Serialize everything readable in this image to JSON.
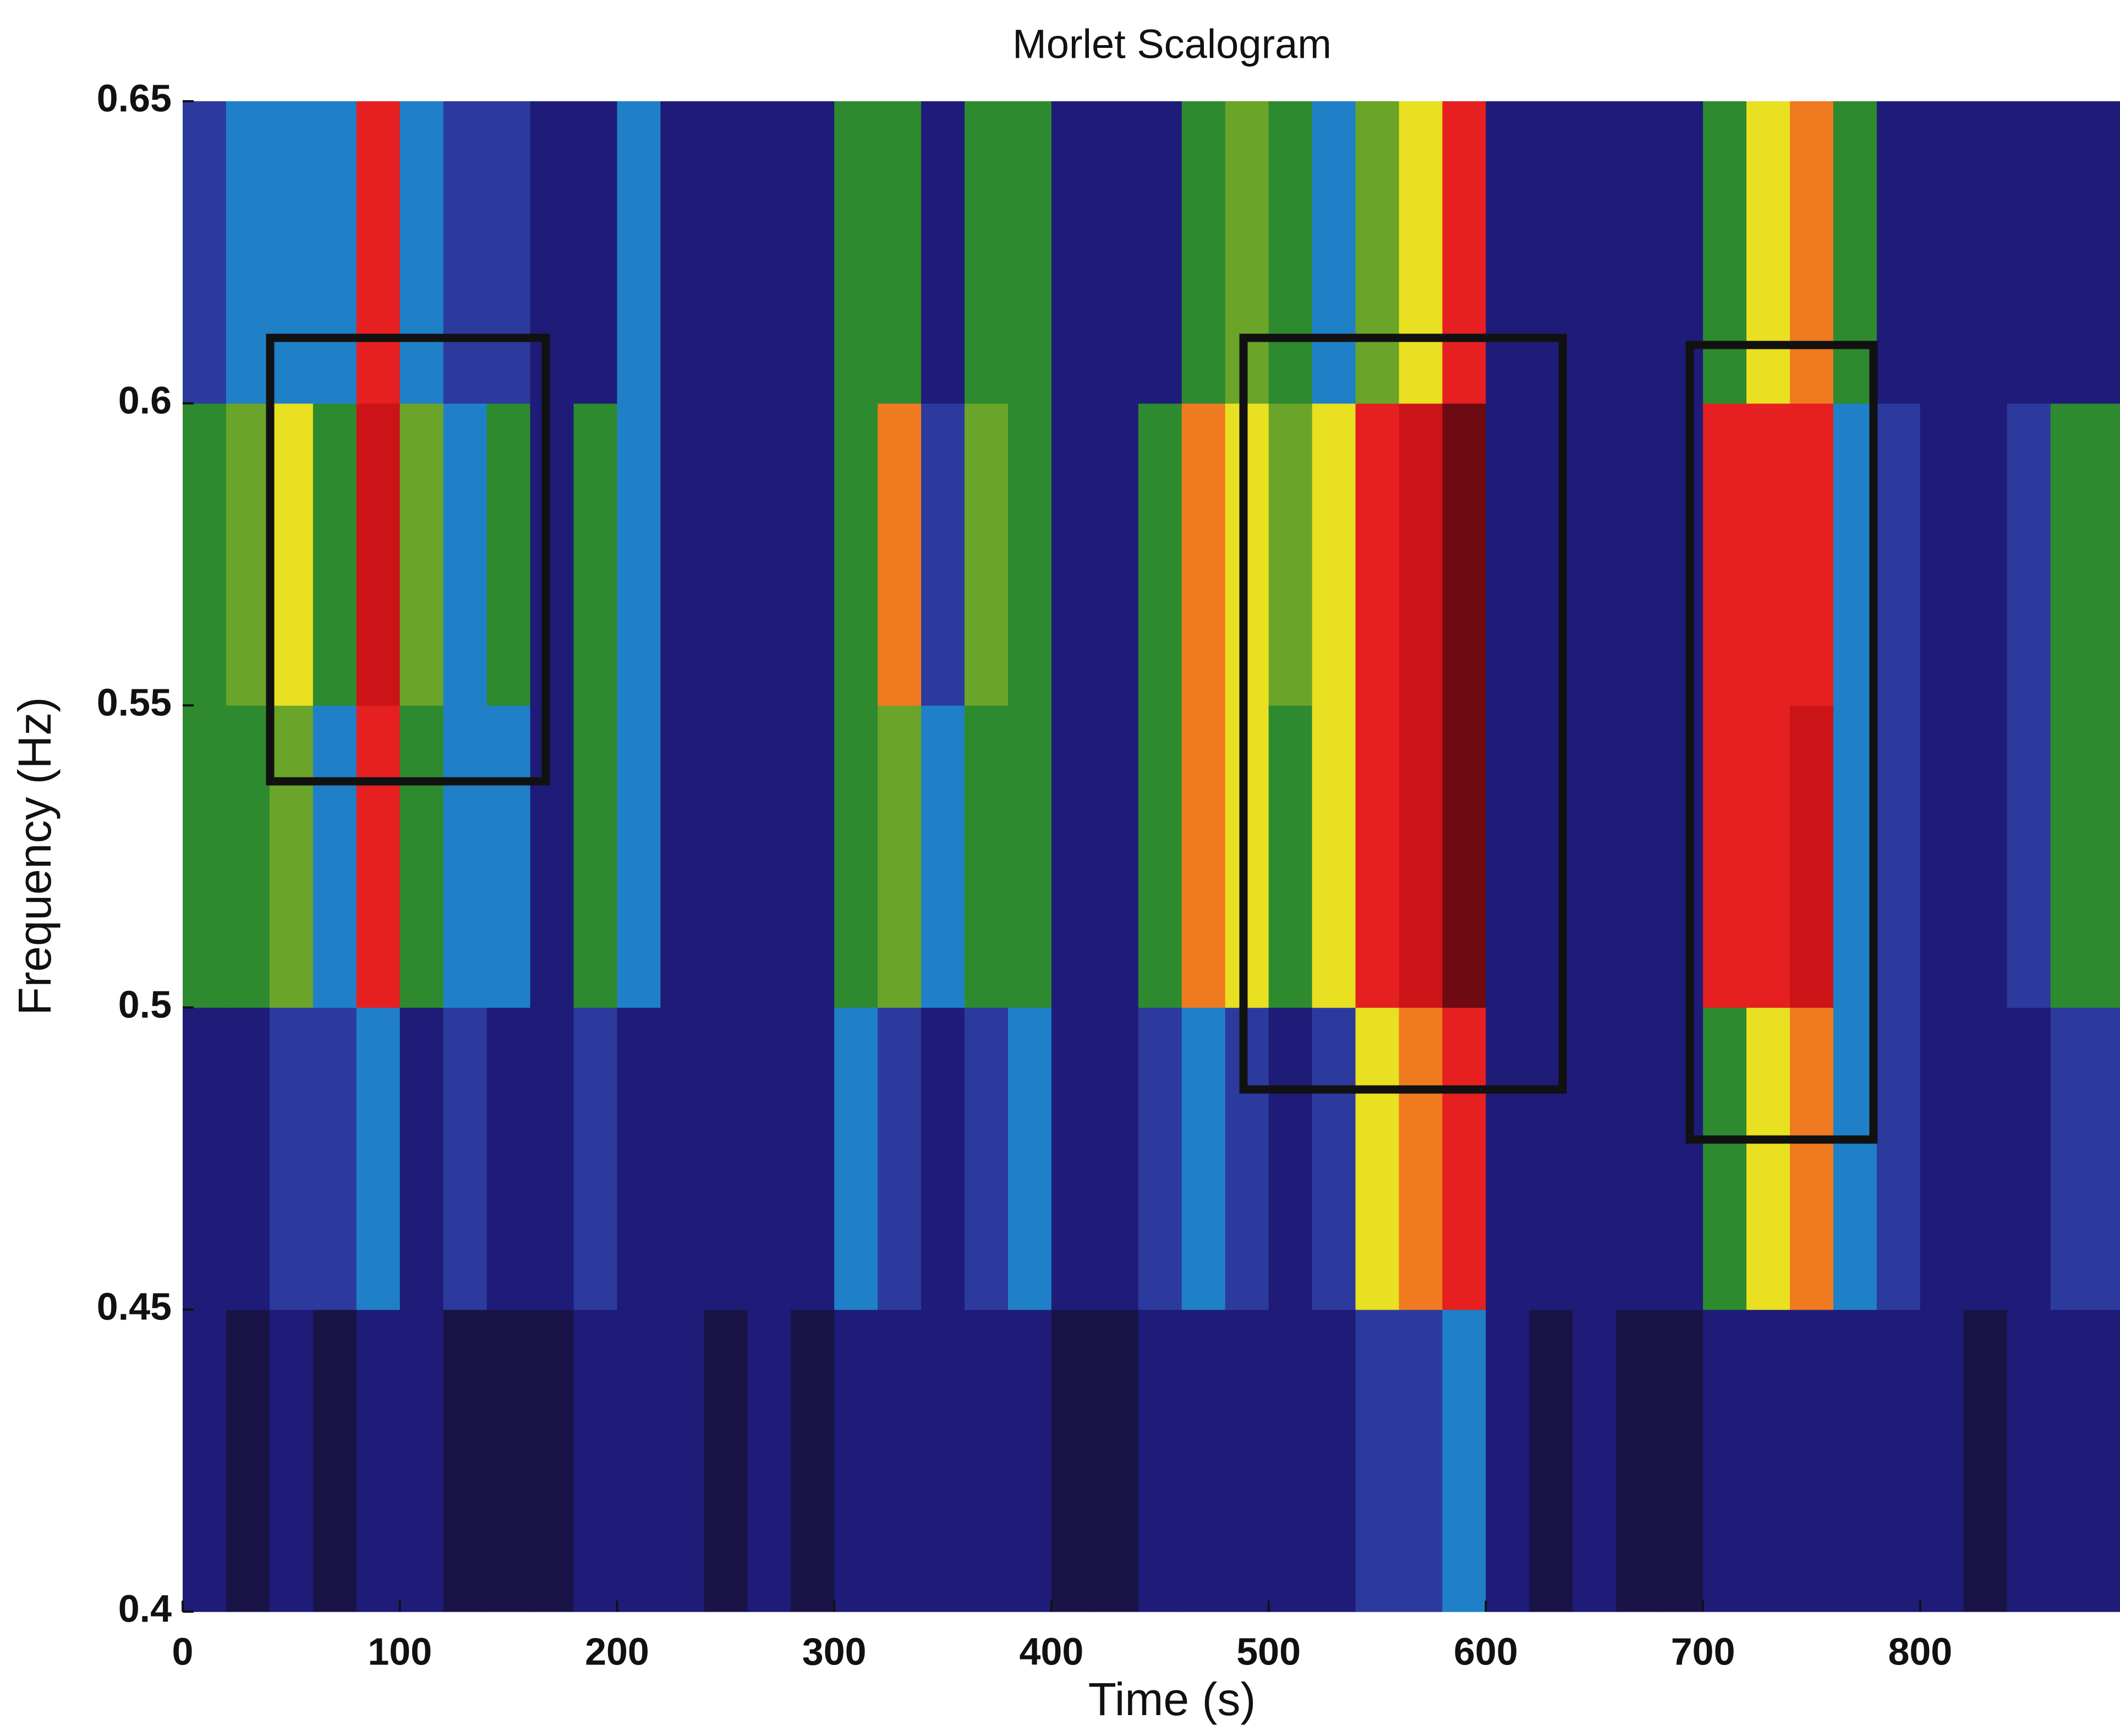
{
  "chart_data": {
    "type": "heatmap",
    "title": "Morlet Scalogram",
    "x_label": "Time (s)",
    "y_label": "Frequency (Hz)",
    "xlim": [
      0,
      892
    ],
    "ylim": [
      0.4,
      0.65
    ],
    "xticks": [
      0,
      100,
      200,
      300,
      400,
      500,
      600,
      700,
      800
    ],
    "yticks": [
      0.4,
      0.45,
      0.5,
      0.55,
      0.6,
      0.65
    ],
    "xbins": [
      0,
      20,
      40,
      60,
      80,
      100,
      120,
      140,
      160,
      180,
      200,
      220,
      240,
      260,
      280,
      300,
      320,
      340,
      360,
      380,
      400,
      420,
      440,
      460,
      480,
      500,
      520,
      540,
      560,
      580,
      600,
      620,
      640,
      660,
      680,
      700,
      720,
      740,
      760,
      780,
      800,
      820,
      840,
      860,
      880,
      892
    ],
    "ybins": [
      0.4,
      0.45,
      0.5,
      0.55,
      0.6,
      0.65
    ],
    "colormap": [
      "#1a1446",
      "#1e1c78",
      "#2c3a9e",
      "#1f80c8",
      "#2e8a2e",
      "#6aa428",
      "#e8e020",
      "#f07a20",
      "#e62020",
      "#cc1418",
      "#6e0a12"
    ],
    "z": [
      [
        1,
        0,
        1,
        0,
        1,
        1,
        0,
        0,
        0,
        1,
        1,
        1,
        0,
        1,
        0,
        1,
        1,
        1,
        1,
        1,
        0,
        0,
        1,
        1,
        1,
        1,
        1,
        2,
        2,
        3,
        1,
        0,
        1,
        0,
        0,
        1,
        1,
        1,
        1,
        1,
        1,
        0,
        1,
        1,
        1
      ],
      [
        1,
        1,
        2,
        2,
        3,
        1,
        2,
        1,
        1,
        2,
        1,
        1,
        1,
        1,
        1,
        3,
        2,
        1,
        2,
        3,
        1,
        1,
        2,
        3,
        2,
        1,
        2,
        6,
        7,
        8,
        1,
        1,
        1,
        1,
        1,
        4,
        6,
        7,
        3,
        2,
        1,
        1,
        1,
        2,
        2
      ],
      [
        4,
        4,
        5,
        3,
        8,
        4,
        3,
        3,
        1,
        4,
        3,
        1,
        1,
        1,
        1,
        4,
        5,
        3,
        4,
        4,
        1,
        1,
        4,
        7,
        6,
        4,
        6,
        8,
        9,
        10,
        1,
        1,
        1,
        1,
        1,
        8,
        8,
        9,
        3,
        2,
        1,
        1,
        2,
        4,
        4
      ],
      [
        4,
        5,
        6,
        4,
        9,
        5,
        3,
        4,
        1,
        4,
        3,
        1,
        1,
        1,
        1,
        4,
        7,
        2,
        5,
        4,
        1,
        1,
        4,
        7,
        6,
        5,
        6,
        8,
        9,
        10,
        1,
        1,
        1,
        1,
        1,
        8,
        8,
        8,
        3,
        2,
        1,
        1,
        2,
        4,
        4
      ],
      [
        2,
        3,
        3,
        3,
        8,
        3,
        2,
        2,
        1,
        1,
        3,
        1,
        1,
        1,
        1,
        4,
        4,
        1,
        4,
        4,
        1,
        1,
        1,
        4,
        5,
        4,
        3,
        5,
        6,
        8,
        1,
        1,
        1,
        1,
        1,
        4,
        6,
        7,
        4,
        1,
        1,
        1,
        1,
        1,
        1
      ]
    ]
  }
}
